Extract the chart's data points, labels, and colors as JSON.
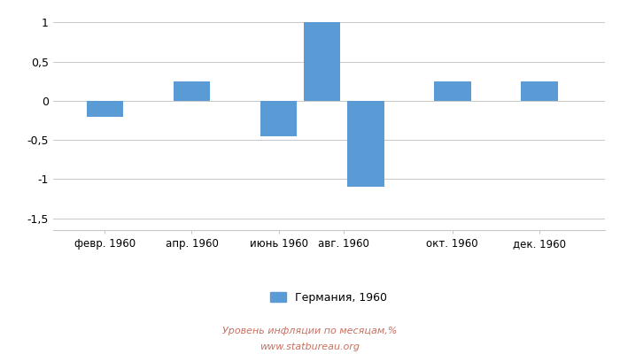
{
  "bar_positions": [
    1,
    3,
    5,
    6,
    7,
    9,
    11
  ],
  "bar_values": [
    -0.2,
    0.25,
    -0.45,
    1.0,
    -1.1,
    0.25,
    0.25
  ],
  "xtick_positions": [
    1,
    3,
    5,
    6.5,
    9,
    11
  ],
  "xtick_labels": [
    "февр. 1960",
    "апр. 1960",
    "июнь 1960",
    "авг. 1960",
    "окт. 1960",
    "дек. 1960"
  ],
  "bar_color": "#5b9bd5",
  "ylim": [
    -1.65,
    1.15
  ],
  "yticks": [
    -1.5,
    -1.0,
    -0.5,
    0,
    0.5,
    1.0
  ],
  "ytick_labels": [
    "-1,5",
    "-1",
    "-0,5",
    "0",
    "0,5",
    "1"
  ],
  "legend_label": "Германия, 1960",
  "title_bottom1": "Уровень инфляции по месяцам,%",
  "title_bottom2": "www.statbureau.org",
  "background_color": "#ffffff",
  "grid_color": "#c8c8c8",
  "text_color": "#c87060"
}
